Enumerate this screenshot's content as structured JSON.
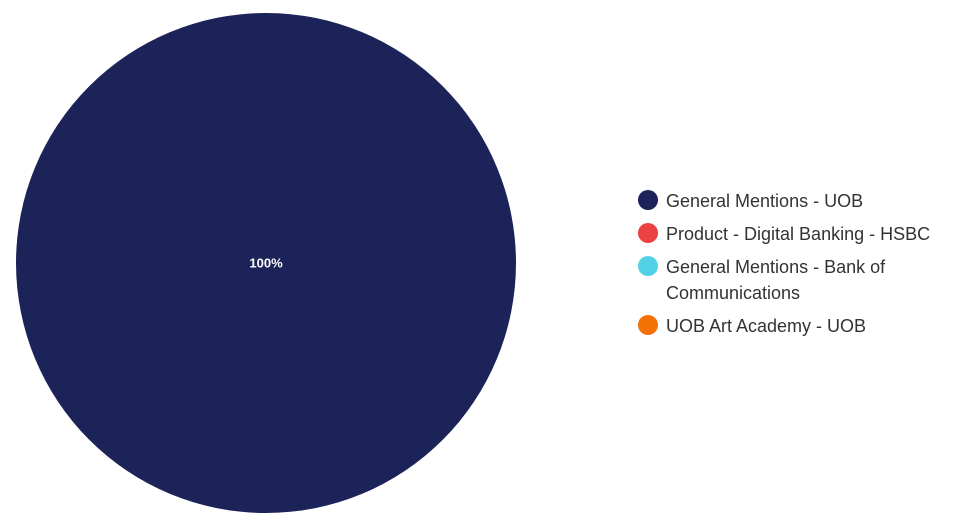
{
  "chart_data": {
    "type": "pie",
    "title": "",
    "slices": [
      {
        "label": "General Mentions - UOB",
        "value": 100,
        "percent_label": "100%",
        "color": "#1c2359"
      },
      {
        "label": "Product - Digital Banking - HSBC",
        "value": 0,
        "percent_label": "",
        "color": "#ec4141"
      },
      {
        "label": "General Mentions - Bank of Communications",
        "value": 0,
        "percent_label": "",
        "color": "#52d0e4"
      },
      {
        "label": "UOB Art Academy - UOB",
        "value": 0,
        "percent_label": "",
        "color": "#f47206"
      }
    ],
    "legend_position": "right"
  }
}
